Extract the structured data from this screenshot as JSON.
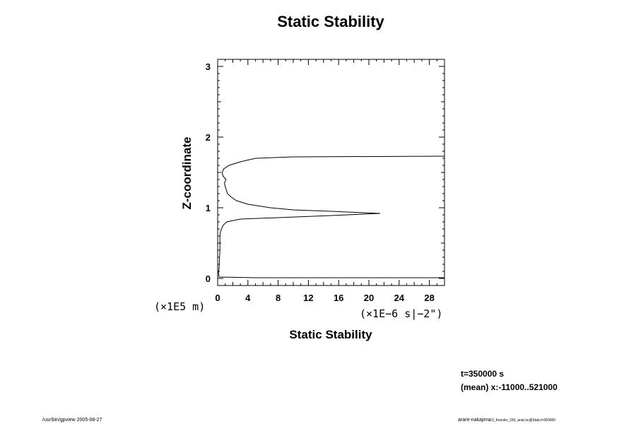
{
  "chart_data": {
    "type": "line",
    "title": "Static Stability",
    "xlabel": "Static Stability",
    "ylabel": "Z-coordinate",
    "x_unit_label": "(×1E−6 s|−2\")",
    "y_unit_label": "(×1E5 m)",
    "xlim": [
      0,
      30
    ],
    "ylim": [
      -0.1,
      3.1
    ],
    "x_ticks": [
      0,
      4,
      8,
      12,
      16,
      20,
      24,
      28
    ],
    "y_ticks": [
      0,
      1,
      2,
      3
    ],
    "grid": false,
    "series": [
      {
        "points": [
          [
            30,
            0.01
          ],
          [
            5,
            0.01
          ],
          [
            0.2,
            0.02
          ],
          [
            0.1,
            0.08
          ],
          [
            0.2,
            0.15
          ],
          [
            0.25,
            0.3
          ],
          [
            0.3,
            0.4
          ],
          [
            0.3,
            0.5
          ],
          [
            0.3,
            0.6
          ],
          [
            0.35,
            0.65
          ],
          [
            0.5,
            0.7
          ],
          [
            0.7,
            0.75
          ],
          [
            1.2,
            0.8
          ],
          [
            3,
            0.84
          ],
          [
            8,
            0.86
          ],
          [
            15,
            0.89
          ],
          [
            21.5,
            0.92
          ],
          [
            15,
            0.95
          ],
          [
            10,
            0.97
          ],
          [
            7,
            1.0
          ],
          [
            4,
            1.05
          ],
          [
            2.5,
            1.1
          ],
          [
            1.8,
            1.15
          ],
          [
            1.3,
            1.2
          ],
          [
            1.0,
            1.3
          ],
          [
            0.9,
            1.35
          ],
          [
            1.1,
            1.4
          ],
          [
            0.7,
            1.45
          ],
          [
            0.6,
            1.5
          ],
          [
            0.8,
            1.55
          ],
          [
            1.5,
            1.6
          ],
          [
            3,
            1.65
          ],
          [
            5,
            1.7
          ],
          [
            10,
            1.72
          ],
          [
            30,
            1.73
          ]
        ]
      }
    ]
  },
  "annotations": {
    "time": "t=350000 s",
    "mean": "(mean) x:-11000..521000",
    "footer_left": "/usr/bin/gpview 2005-08-27",
    "footer_right": "arare-nakajima",
    "footer_right_small": "/3_Kessler_150_anal.nc@Stab,t=350000"
  }
}
